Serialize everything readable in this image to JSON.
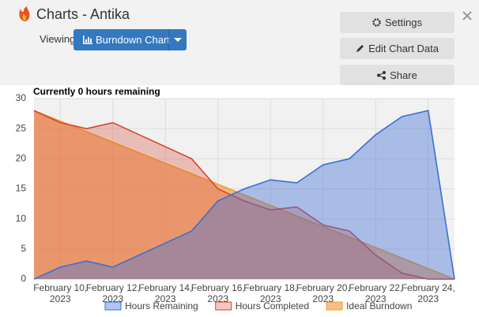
{
  "header": {
    "title": "Charts - Antika",
    "viewing": "Viewing",
    "chart_button": "Burndown Chart"
  },
  "buttons": [
    "Settings",
    "Edit Chart Data",
    "Share"
  ],
  "chart_data": {
    "type": "area",
    "title": "Currently 0 hours remaining",
    "x": [
      "2023-02-09",
      "2023-02-10",
      "2023-02-11",
      "2023-02-12",
      "2023-02-13",
      "2023-02-14",
      "2023-02-15",
      "2023-02-16",
      "2023-02-17",
      "2023-02-18",
      "2023-02-19",
      "2023-02-20",
      "2023-02-21",
      "2023-02-22",
      "2023-02-23",
      "2023-02-24",
      "2023-02-25"
    ],
    "xlim": [
      "2023-02-09",
      "2023-02-25"
    ],
    "xticks": [
      {
        "value": "2023-02-10",
        "label": "February 10, 2023"
      },
      {
        "value": "2023-02-12",
        "label": "February 12, 2023"
      },
      {
        "value": "2023-02-14",
        "label": "February 14, 2023"
      },
      {
        "value": "2023-02-16",
        "label": "February 16, 2023"
      },
      {
        "value": "2023-02-18",
        "label": "February 18, 2023"
      },
      {
        "value": "2023-02-20",
        "label": "February 20, 2023"
      },
      {
        "value": "2023-02-22",
        "label": "February 22, 2023"
      },
      {
        "value": "2023-02-24",
        "label": "February 24, 2023"
      }
    ],
    "ylim": [
      0,
      30
    ],
    "yticks": [
      0,
      5,
      10,
      15,
      20,
      25,
      30
    ],
    "grid": true,
    "legend": "bottom",
    "series": [
      {
        "name": "Hours Remaining",
        "color": "#3a6fd8",
        "values": [
          0,
          2,
          3,
          2,
          4,
          6,
          8,
          13,
          15,
          16.5,
          16,
          19,
          20,
          24,
          27,
          28,
          0
        ]
      },
      {
        "name": "Hours Completed",
        "color": "#d8432b",
        "values": [
          28,
          26,
          25,
          26,
          24,
          22,
          20,
          15,
          13,
          11.5,
          12,
          9,
          8,
          4,
          1,
          0,
          0
        ]
      },
      {
        "name": "Ideal Burndown",
        "color": "#f59f1f",
        "values": [
          28,
          26.25,
          24.5,
          22.75,
          21,
          19.25,
          17.5,
          15.75,
          14,
          12.25,
          10.5,
          8.75,
          7,
          5.25,
          3.5,
          1.75,
          0
        ]
      }
    ]
  }
}
